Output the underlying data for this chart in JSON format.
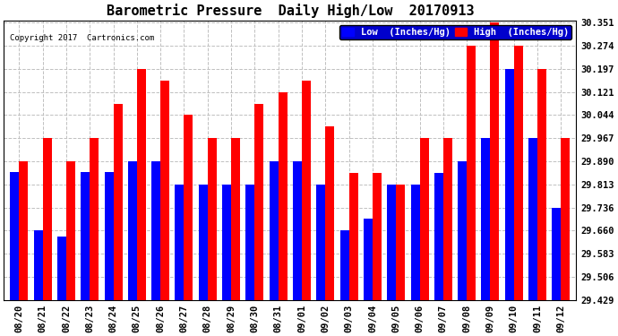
{
  "title": "Barometric Pressure  Daily High/Low  20170913",
  "copyright": "Copyright 2017  Cartronics.com",
  "legend_low": "Low  (Inches/Hg)",
  "legend_high": "High  (Inches/Hg)",
  "dates": [
    "08/20",
    "08/21",
    "08/22",
    "08/23",
    "08/24",
    "08/25",
    "08/26",
    "08/27",
    "08/28",
    "08/29",
    "08/30",
    "08/31",
    "09/01",
    "09/02",
    "09/03",
    "09/04",
    "09/05",
    "09/06",
    "09/07",
    "09/08",
    "09/09",
    "09/10",
    "09/11",
    "09/12"
  ],
  "low": [
    29.853,
    29.66,
    29.64,
    29.853,
    29.853,
    29.891,
    29.891,
    29.814,
    29.814,
    29.814,
    29.814,
    29.891,
    29.891,
    29.814,
    29.66,
    29.698,
    29.814,
    29.814,
    29.852,
    29.891,
    29.967,
    30.197,
    29.967,
    29.736
  ],
  "high": [
    29.891,
    29.967,
    29.891,
    29.967,
    30.082,
    30.197,
    30.159,
    30.044,
    29.967,
    29.967,
    30.082,
    30.121,
    30.159,
    30.005,
    29.852,
    29.852,
    29.814,
    29.967,
    29.967,
    30.274,
    30.351,
    30.274,
    30.197,
    29.967
  ],
  "ylim_min": 29.429,
  "ylim_max": 30.351,
  "yticks": [
    29.429,
    29.506,
    29.583,
    29.66,
    29.736,
    29.813,
    29.89,
    29.967,
    30.044,
    30.121,
    30.197,
    30.274,
    30.351
  ],
  "bar_width": 0.38,
  "low_color": "#0000FF",
  "high_color": "#FF0000",
  "background_color": "#FFFFFF",
  "grid_color": "#C0C0C0",
  "title_fontsize": 11,
  "tick_fontsize": 7.5,
  "legend_fontsize": 7.5
}
